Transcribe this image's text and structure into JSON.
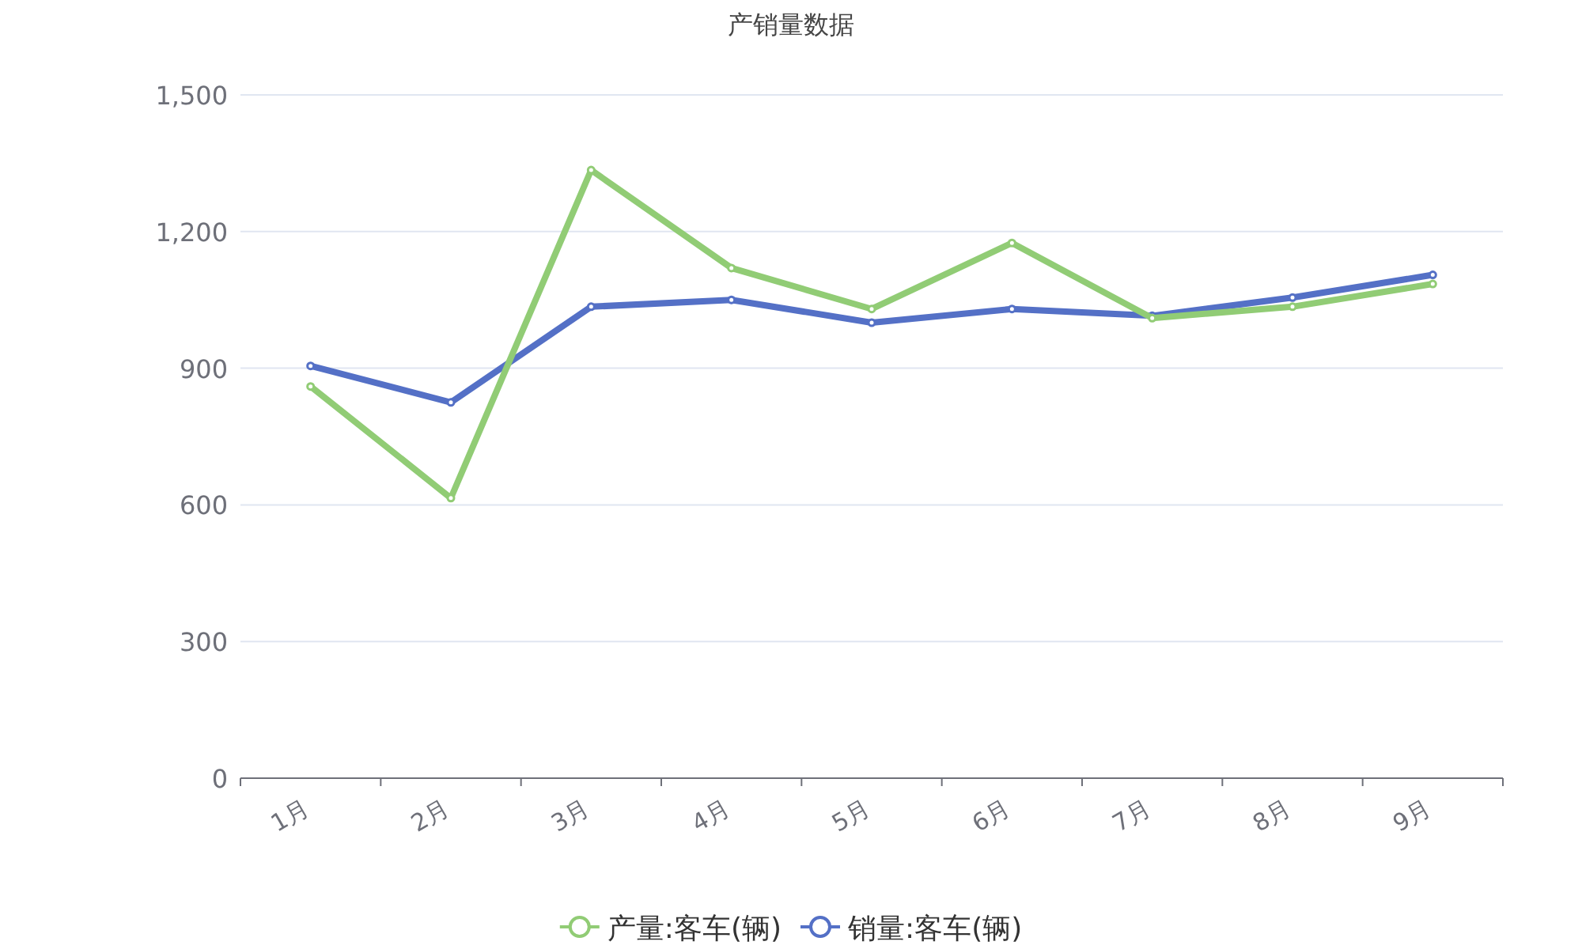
{
  "chart_data": {
    "type": "line",
    "title": "产销量数据",
    "categories": [
      "1月",
      "2月",
      "3月",
      "4月",
      "5月",
      "6月",
      "7月",
      "8月",
      "9月"
    ],
    "series": [
      {
        "name": "产量:客车(辆)",
        "color": "#91cc75",
        "values": [
          860,
          615,
          1335,
          1120,
          1030,
          1175,
          1010,
          1035,
          1085
        ]
      },
      {
        "name": "销量:客车(辆)",
        "color": "#5470c6",
        "values": [
          905,
          825,
          1035,
          1050,
          1000,
          1030,
          1015,
          1055,
          1105
        ]
      }
    ],
    "ylim": [
      0,
      1500
    ],
    "yticks": [
      0,
      {
        "value": 300,
        "label": "300"
      },
      {
        "value": 600,
        "label": "600"
      },
      {
        "value": 900,
        "label": "900"
      },
      {
        "value": 1200,
        "label": "1,200"
      },
      {
        "value": 1500,
        "label": "1,500"
      }
    ],
    "grid": "y",
    "legend": "bottom",
    "marker": "circle",
    "line_style": "solid"
  }
}
